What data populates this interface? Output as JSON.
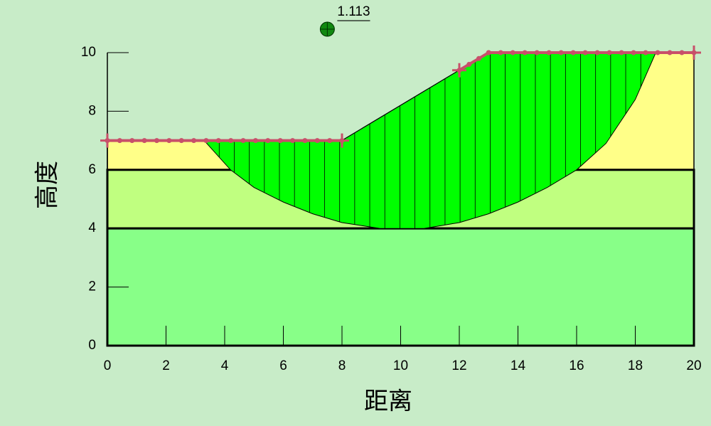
{
  "chart_data": {
    "type": "slope",
    "xlabel": "距离",
    "ylabel": "高度",
    "xlim": [
      0,
      20
    ],
    "ylim": [
      0,
      10
    ],
    "xticks": [
      0,
      2,
      4,
      6,
      8,
      10,
      12,
      14,
      16,
      18,
      20
    ],
    "yticks": [
      0,
      2,
      4,
      6,
      8,
      10
    ],
    "ground_surface": {
      "x": [
        0,
        8,
        13,
        20
      ],
      "y": [
        7,
        7,
        10,
        10
      ],
      "color": "#ffff88"
    },
    "layer_boundaries": [
      {
        "y": 6,
        "color": "#c0ff80"
      },
      {
        "y": 4,
        "color": "#88ff88"
      }
    ],
    "slip_surface": {
      "x": [
        3.3,
        4.2,
        5,
        6,
        7,
        8,
        9.3,
        10.8,
        12,
        13,
        14,
        15,
        16,
        17,
        18,
        18.7
      ],
      "y": [
        7,
        6,
        5.4,
        4.9,
        4.5,
        4.2,
        4,
        4,
        4.2,
        4.5,
        4.9,
        5.4,
        6,
        6.9,
        8.4,
        10
      ],
      "color": "#00ff00"
    },
    "water_table": {
      "x": [
        0,
        8,
        null,
        12,
        13,
        20
      ],
      "y": [
        7,
        7,
        null,
        9.4,
        10,
        10
      ],
      "color": "#c8506a"
    },
    "center": {
      "x": 7.5,
      "y": 10.8,
      "color": "#118811"
    },
    "annotation": "1.113"
  }
}
